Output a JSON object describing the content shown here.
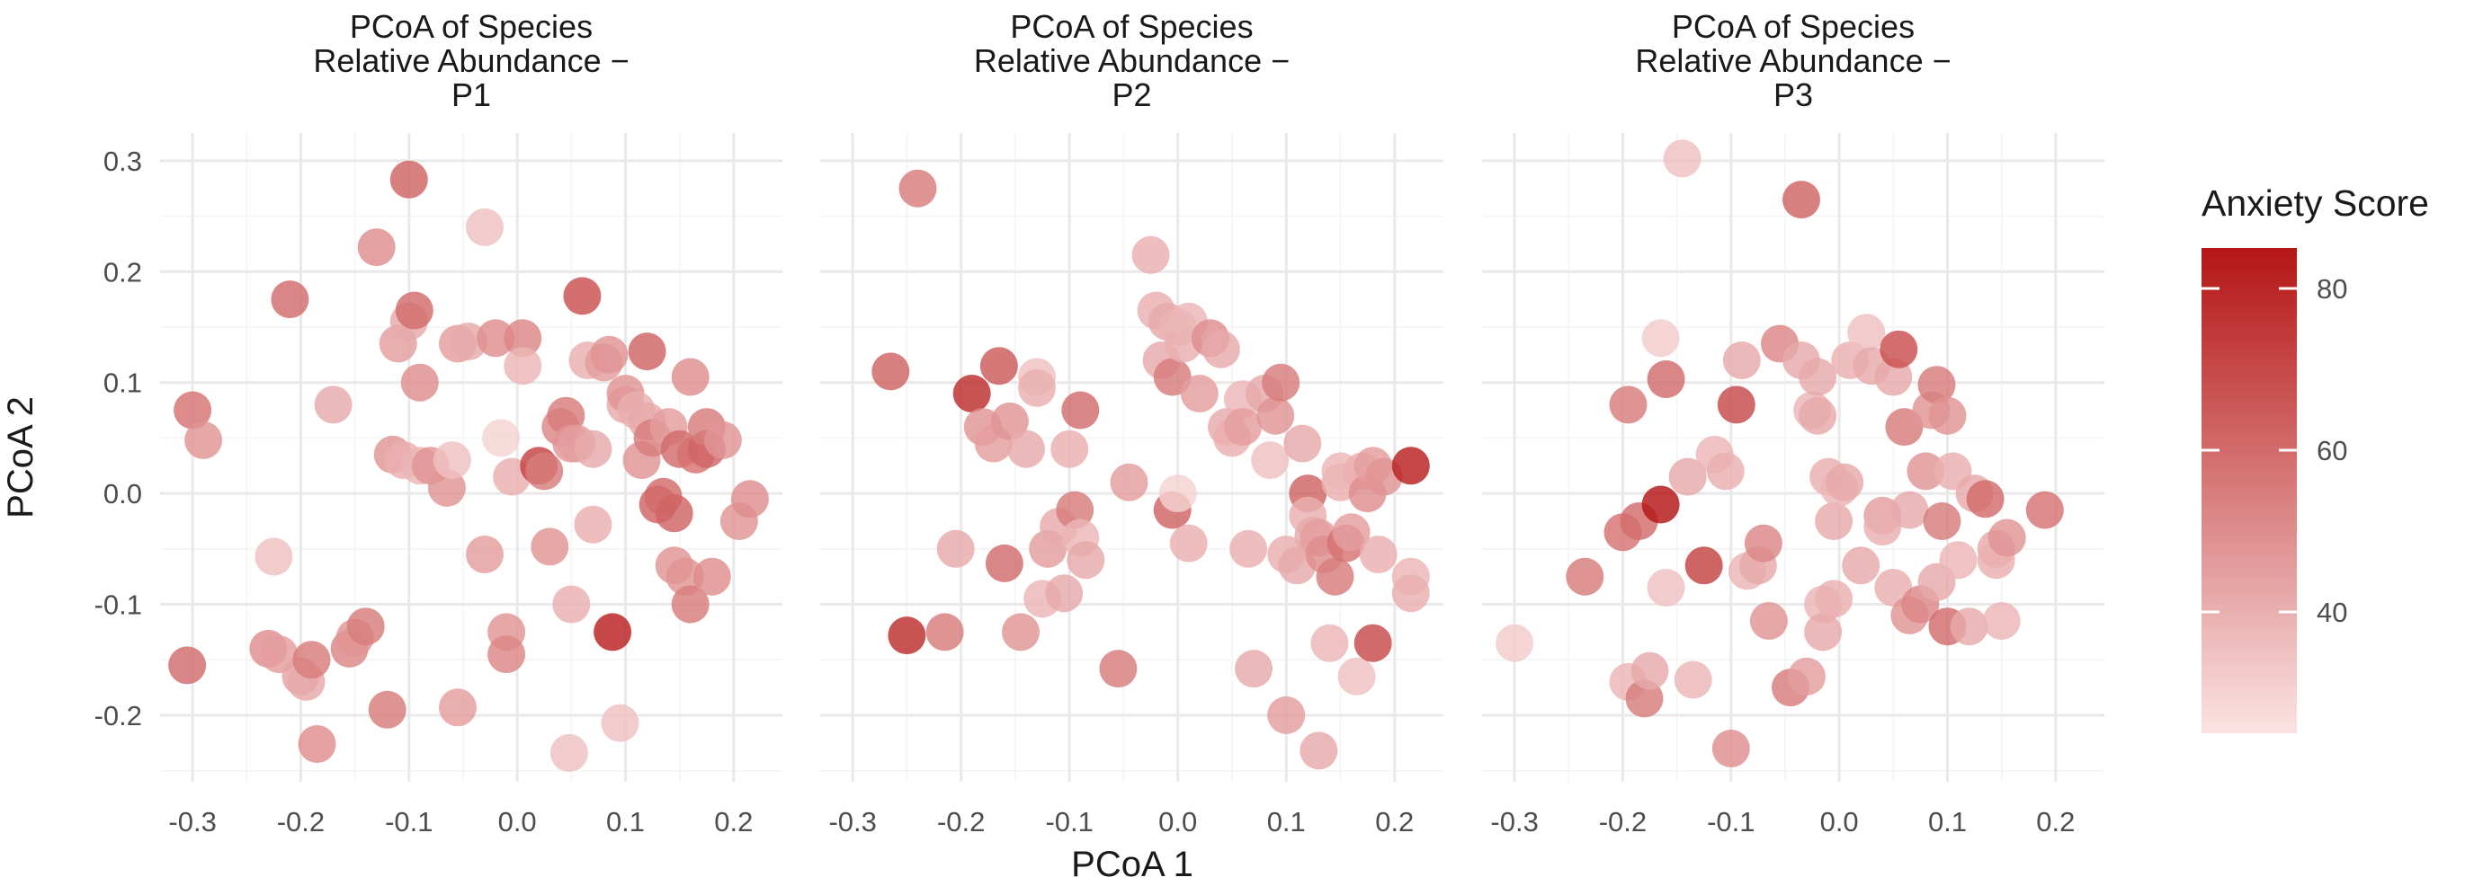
{
  "chart_data": {
    "type": "scatter",
    "xlabel": "PCoA 1",
    "ylabel": "PCoA 2",
    "xlim": [
      -0.33,
      0.245
    ],
    "ylim": [
      -0.26,
      0.325
    ],
    "x_ticks": [
      -0.3,
      -0.2,
      -0.1,
      0.0,
      0.1,
      0.2
    ],
    "x_tick_labels": [
      "-0.3",
      "-0.2",
      "-0.1",
      "0.0",
      "0.1",
      "0.2"
    ],
    "y_ticks": [
      -0.2,
      -0.1,
      0.0,
      0.1,
      0.2,
      0.3
    ],
    "y_tick_labels": [
      "-0.2",
      "-0.1",
      "0.0",
      "0.1",
      "0.2",
      "0.3"
    ],
    "grid": true,
    "color_scale": {
      "title": "Anxiety Score",
      "min": 25,
      "max": 85,
      "low_color": "#fbe3e3",
      "high_color": "#b51515",
      "ticks": [
        40,
        60,
        80
      ],
      "tick_labels": [
        "40",
        "60",
        "80"
      ]
    },
    "panels": [
      {
        "title_lines": [
          "PCoA of Species",
          "Relative Abundance −",
          "P1"
        ],
        "points": [
          [
            -0.305,
            -0.155,
            60
          ],
          [
            -0.3,
            0.075,
            58
          ],
          [
            -0.29,
            0.048,
            48
          ],
          [
            -0.225,
            -0.057,
            35
          ],
          [
            -0.23,
            -0.14,
            50
          ],
          [
            -0.22,
            -0.145,
            45
          ],
          [
            -0.21,
            0.175,
            60
          ],
          [
            -0.2,
            -0.165,
            44
          ],
          [
            -0.195,
            -0.17,
            42
          ],
          [
            -0.19,
            -0.15,
            55
          ],
          [
            -0.185,
            -0.226,
            50
          ],
          [
            -0.17,
            0.08,
            42
          ],
          [
            -0.155,
            -0.14,
            52
          ],
          [
            -0.15,
            -0.13,
            48
          ],
          [
            -0.14,
            -0.12,
            55
          ],
          [
            -0.13,
            0.222,
            50
          ],
          [
            -0.12,
            -0.195,
            55
          ],
          [
            -0.115,
            0.035,
            48
          ],
          [
            -0.11,
            0.135,
            45
          ],
          [
            -0.105,
            0.03,
            40
          ],
          [
            -0.1,
            0.283,
            62
          ],
          [
            -0.1,
            0.155,
            42
          ],
          [
            -0.095,
            0.165,
            60
          ],
          [
            -0.09,
            0.1,
            50
          ],
          [
            -0.09,
            0.025,
            38
          ],
          [
            -0.08,
            0.025,
            48
          ],
          [
            -0.065,
            0.005,
            48
          ],
          [
            -0.06,
            0.03,
            35
          ],
          [
            -0.055,
            -0.193,
            45
          ],
          [
            -0.055,
            0.135,
            45
          ],
          [
            -0.045,
            0.137,
            42
          ],
          [
            -0.03,
            0.24,
            35
          ],
          [
            -0.03,
            -0.055,
            45
          ],
          [
            -0.02,
            0.14,
            50
          ],
          [
            -0.015,
            0.05,
            30
          ],
          [
            -0.01,
            -0.125,
            48
          ],
          [
            -0.01,
            -0.145,
            52
          ],
          [
            -0.005,
            0.015,
            40
          ],
          [
            0.005,
            0.14,
            52
          ],
          [
            0.005,
            0.115,
            38
          ],
          [
            0.02,
            0.025,
            72
          ],
          [
            0.025,
            0.02,
            55
          ],
          [
            0.03,
            -0.048,
            48
          ],
          [
            0.04,
            0.06,
            52
          ],
          [
            0.045,
            0.07,
            55
          ],
          [
            0.048,
            -0.234,
            35
          ],
          [
            0.05,
            0.045,
            48
          ],
          [
            0.05,
            -0.1,
            40
          ],
          [
            0.055,
            0.045,
            45
          ],
          [
            0.06,
            0.178,
            68
          ],
          [
            0.065,
            0.12,
            40
          ],
          [
            0.07,
            0.04,
            42
          ],
          [
            0.07,
            -0.028,
            40
          ],
          [
            0.08,
            0.118,
            45
          ],
          [
            0.085,
            0.125,
            48
          ],
          [
            0.088,
            -0.125,
            82
          ],
          [
            0.095,
            -0.207,
            35
          ],
          [
            0.1,
            0.08,
            42
          ],
          [
            0.1,
            0.09,
            48
          ],
          [
            0.11,
            0.075,
            40
          ],
          [
            0.115,
            0.03,
            48
          ],
          [
            0.12,
            0.128,
            62
          ],
          [
            0.12,
            0.065,
            42
          ],
          [
            0.125,
            0.05,
            55
          ],
          [
            0.13,
            -0.01,
            62
          ],
          [
            0.135,
            -0.003,
            60
          ],
          [
            0.14,
            0.06,
            45
          ],
          [
            0.145,
            -0.018,
            62
          ],
          [
            0.145,
            -0.065,
            48
          ],
          [
            0.15,
            0.04,
            60
          ],
          [
            0.155,
            -0.075,
            48
          ],
          [
            0.16,
            0.105,
            50
          ],
          [
            0.16,
            -0.1,
            55
          ],
          [
            0.165,
            0.035,
            58
          ],
          [
            0.175,
            0.04,
            62
          ],
          [
            0.175,
            0.06,
            55
          ],
          [
            0.18,
            -0.075,
            50
          ],
          [
            0.19,
            0.048,
            48
          ],
          [
            0.205,
            -0.025,
            48
          ],
          [
            0.215,
            -0.005,
            50
          ]
        ]
      },
      {
        "title_lines": [
          "PCoA of Species",
          "Relative Abundance −",
          "P2"
        ],
        "points": [
          [
            -0.265,
            0.11,
            62
          ],
          [
            -0.24,
            0.275,
            55
          ],
          [
            -0.25,
            -0.128,
            78
          ],
          [
            -0.215,
            -0.125,
            55
          ],
          [
            -0.205,
            -0.05,
            42
          ],
          [
            -0.19,
            0.09,
            78
          ],
          [
            -0.18,
            0.06,
            48
          ],
          [
            -0.17,
            0.045,
            45
          ],
          [
            -0.165,
            0.115,
            65
          ],
          [
            -0.16,
            -0.063,
            60
          ],
          [
            -0.155,
            0.065,
            48
          ],
          [
            -0.145,
            -0.125,
            48
          ],
          [
            -0.14,
            0.04,
            42
          ],
          [
            -0.13,
            0.105,
            35
          ],
          [
            -0.13,
            0.095,
            40
          ],
          [
            -0.125,
            -0.095,
            38
          ],
          [
            -0.12,
            -0.05,
            45
          ],
          [
            -0.11,
            -0.03,
            42
          ],
          [
            -0.105,
            -0.09,
            42
          ],
          [
            -0.1,
            0.04,
            40
          ],
          [
            -0.095,
            -0.015,
            55
          ],
          [
            -0.09,
            0.075,
            60
          ],
          [
            -0.09,
            -0.04,
            38
          ],
          [
            -0.085,
            -0.06,
            42
          ],
          [
            -0.055,
            -0.158,
            55
          ],
          [
            -0.045,
            0.01,
            45
          ],
          [
            -0.025,
            0.215,
            40
          ],
          [
            -0.02,
            0.165,
            40
          ],
          [
            -0.015,
            0.12,
            42
          ],
          [
            -0.01,
            0.155,
            42
          ],
          [
            -0.005,
            0.105,
            55
          ],
          [
            -0.005,
            -0.015,
            62
          ],
          [
            0.0,
            0.15,
            38
          ],
          [
            0.0,
            0.0,
            30
          ],
          [
            0.005,
            0.135,
            40
          ],
          [
            0.01,
            0.155,
            38
          ],
          [
            0.01,
            -0.045,
            40
          ],
          [
            0.02,
            0.09,
            45
          ],
          [
            0.03,
            0.14,
            50
          ],
          [
            0.04,
            0.13,
            42
          ],
          [
            0.045,
            0.06,
            42
          ],
          [
            0.05,
            0.05,
            40
          ],
          [
            0.06,
            0.085,
            38
          ],
          [
            0.06,
            0.06,
            45
          ],
          [
            0.065,
            -0.05,
            40
          ],
          [
            0.07,
            -0.158,
            42
          ],
          [
            0.08,
            0.09,
            42
          ],
          [
            0.085,
            0.03,
            35
          ],
          [
            0.09,
            0.07,
            48
          ],
          [
            0.095,
            0.1,
            55
          ],
          [
            0.1,
            -0.055,
            40
          ],
          [
            0.1,
            -0.2,
            45
          ],
          [
            0.11,
            -0.065,
            42
          ],
          [
            0.115,
            0.045,
            42
          ],
          [
            0.12,
            0.0,
            62
          ],
          [
            0.12,
            -0.02,
            40
          ],
          [
            0.125,
            -0.038,
            42
          ],
          [
            0.13,
            -0.04,
            45
          ],
          [
            0.13,
            -0.232,
            42
          ],
          [
            0.135,
            -0.055,
            50
          ],
          [
            0.14,
            -0.135,
            38
          ],
          [
            0.145,
            -0.075,
            55
          ],
          [
            0.15,
            0.01,
            40
          ],
          [
            0.15,
            0.02,
            38
          ],
          [
            0.155,
            -0.045,
            58
          ],
          [
            0.16,
            -0.035,
            45
          ],
          [
            0.165,
            -0.165,
            35
          ],
          [
            0.17,
            0.02,
            40
          ],
          [
            0.175,
            0.0,
            50
          ],
          [
            0.18,
            0.025,
            45
          ],
          [
            0.18,
            -0.135,
            70
          ],
          [
            0.185,
            -0.055,
            40
          ],
          [
            0.19,
            0.015,
            48
          ],
          [
            0.215,
            0.025,
            82
          ],
          [
            0.215,
            -0.075,
            38
          ],
          [
            0.215,
            -0.09,
            40
          ]
        ]
      },
      {
        "title_lines": [
          "PCoA of Species",
          "Relative Abundance −",
          "P3"
        ],
        "points": [
          [
            -0.3,
            -0.135,
            32
          ],
          [
            -0.235,
            -0.075,
            55
          ],
          [
            -0.195,
            0.08,
            55
          ],
          [
            -0.2,
            -0.035,
            58
          ],
          [
            -0.195,
            -0.17,
            38
          ],
          [
            -0.185,
            -0.025,
            60
          ],
          [
            -0.18,
            -0.185,
            55
          ],
          [
            -0.175,
            -0.16,
            42
          ],
          [
            -0.165,
            -0.01,
            85
          ],
          [
            -0.165,
            0.14,
            32
          ],
          [
            -0.16,
            0.103,
            60
          ],
          [
            -0.16,
            -0.085,
            35
          ],
          [
            -0.145,
            0.302,
            35
          ],
          [
            -0.14,
            0.015,
            42
          ],
          [
            -0.135,
            -0.168,
            38
          ],
          [
            -0.125,
            -0.065,
            72
          ],
          [
            -0.115,
            0.035,
            38
          ],
          [
            -0.105,
            0.02,
            40
          ],
          [
            -0.1,
            -0.23,
            50
          ],
          [
            -0.095,
            0.08,
            70
          ],
          [
            -0.09,
            0.12,
            42
          ],
          [
            -0.085,
            -0.07,
            38
          ],
          [
            -0.075,
            -0.065,
            42
          ],
          [
            -0.07,
            -0.045,
            52
          ],
          [
            -0.065,
            -0.115,
            48
          ],
          [
            -0.055,
            0.135,
            52
          ],
          [
            -0.045,
            -0.175,
            55
          ],
          [
            -0.035,
            0.265,
            62
          ],
          [
            -0.035,
            0.12,
            42
          ],
          [
            -0.03,
            -0.165,
            45
          ],
          [
            -0.025,
            0.075,
            38
          ],
          [
            -0.02,
            0.07,
            42
          ],
          [
            -0.02,
            0.105,
            42
          ],
          [
            -0.015,
            -0.1,
            38
          ],
          [
            -0.015,
            -0.125,
            42
          ],
          [
            -0.01,
            0.015,
            40
          ],
          [
            -0.005,
            -0.025,
            42
          ],
          [
            -0.005,
            -0.095,
            40
          ],
          [
            0.0,
            0.005,
            38
          ],
          [
            0.005,
            0.01,
            42
          ],
          [
            0.01,
            0.12,
            40
          ],
          [
            0.02,
            -0.065,
            42
          ],
          [
            0.025,
            0.145,
            35
          ],
          [
            0.03,
            0.115,
            42
          ],
          [
            0.04,
            -0.02,
            45
          ],
          [
            0.04,
            -0.03,
            40
          ],
          [
            0.05,
            0.105,
            42
          ],
          [
            0.05,
            -0.085,
            40
          ],
          [
            0.055,
            0.13,
            68
          ],
          [
            0.06,
            0.06,
            55
          ],
          [
            0.065,
            -0.015,
            42
          ],
          [
            0.065,
            -0.11,
            48
          ],
          [
            0.075,
            -0.1,
            52
          ],
          [
            0.08,
            0.02,
            48
          ],
          [
            0.085,
            0.075,
            48
          ],
          [
            0.09,
            0.098,
            55
          ],
          [
            0.09,
            -0.08,
            42
          ],
          [
            0.095,
            -0.025,
            55
          ],
          [
            0.1,
            0.07,
            48
          ],
          [
            0.1,
            -0.12,
            60
          ],
          [
            0.105,
            0.02,
            40
          ],
          [
            0.11,
            -0.06,
            38
          ],
          [
            0.12,
            -0.12,
            42
          ],
          [
            0.125,
            0.0,
            42
          ],
          [
            0.135,
            -0.005,
            60
          ],
          [
            0.145,
            -0.05,
            42
          ],
          [
            0.145,
            -0.06,
            40
          ],
          [
            0.15,
            -0.115,
            38
          ],
          [
            0.155,
            -0.04,
            48
          ],
          [
            0.19,
            -0.015,
            58
          ]
        ]
      }
    ]
  }
}
